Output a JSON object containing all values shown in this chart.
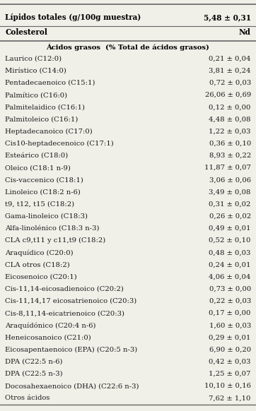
{
  "header_row": {
    "label": "Lípidos totales (g/100g muestra)",
    "value": "5,48 ± 0,31"
  },
  "colesterol_row": {
    "label": "Colesterol",
    "value": "Nd"
  },
  "section_header": "Ácidos grasos  (% Total de ácidos grasos)",
  "rows": [
    [
      "Laurico (C12:0)",
      "0,21 ± 0,04"
    ],
    [
      "Mirístico (C14:0)",
      "3,81 ± 0,24"
    ],
    [
      "Pentadecaenoico (C15:1)",
      "0,72 ± 0,03"
    ],
    [
      "Palmítico (C16:0)",
      "26,06 ± 0,69"
    ],
    [
      "Palmitelaidico (C16:1)",
      "0,12 ± 0,00"
    ],
    [
      "Palmitoleico (C16:1)",
      "4,48 ± 0,08"
    ],
    [
      "Heptadecanoico (C17:0)",
      "1,22 ± 0,03"
    ],
    [
      "Cis10-heptadecenoico (C17:1)",
      "0,36 ± 0,10"
    ],
    [
      "Esteárico (C18:0)",
      "8,93 ± 0,22"
    ],
    [
      "Oleico (C18:1 n-9)",
      "11,87 ± 0,07"
    ],
    [
      "Cis-vaccenico (C18:1)",
      "3,06 ± 0,06"
    ],
    [
      "Linoleico (C18:2 n-6)",
      "3,49 ± 0,08"
    ],
    [
      "t9, t12, t15 (C18:2)",
      "0,31 ± 0,02"
    ],
    [
      "Gama-linoleico (C18:3)",
      "0,26 ± 0,02"
    ],
    [
      "Alfa-linolénico (C18:3 n-3)",
      "0,49 ± 0,01"
    ],
    [
      "CLA c9,t11 y c11,t9 (C18:2)",
      "0,52 ± 0,10"
    ],
    [
      "Araquídico (C20:0)",
      "0,48 ± 0,03"
    ],
    [
      "CLA otros (C18:2)",
      "0,24 ± 0,01"
    ],
    [
      "Eicosenoico (C20:1)",
      "4,06 ± 0,04"
    ],
    [
      "Cis-11,14-eicosadienoico (C20:2)",
      "0,73 ± 0,00"
    ],
    [
      "Cis-11,14,17 eicosatrienoico (C20:3)",
      "0,22 ± 0,03"
    ],
    [
      "Cis-8,11,14-eicatrienoico (C20:3)",
      "0,17 ± 0,00"
    ],
    [
      "Araquídónico (C20:4 n-6)",
      "1,60 ± 0,03"
    ],
    [
      "Heneicosanoico (C21:0)",
      "0,29 ± 0,01"
    ],
    [
      "Eicosapentaenoico (EPA) (C20:5 n-3)",
      "6,90 ± 0,20"
    ],
    [
      "DPA (C22:5 n-6)",
      "0,42 ± 0,03"
    ],
    [
      "DPA (C22:5 n-3)",
      "1,25 ± 0,07"
    ],
    [
      "Docosahexaenoico (DHA) (C22:6 n-3)",
      "10,10 ± 0,16"
    ],
    [
      "Otros ácidos",
      "7,62 ± 1,10"
    ]
  ],
  "bg_color": "#f0efe8",
  "text_color": "#1a1a1a",
  "bold_color": "#000000",
  "line_color": "#666666",
  "font_size": 7.2,
  "header_font_size": 7.6
}
